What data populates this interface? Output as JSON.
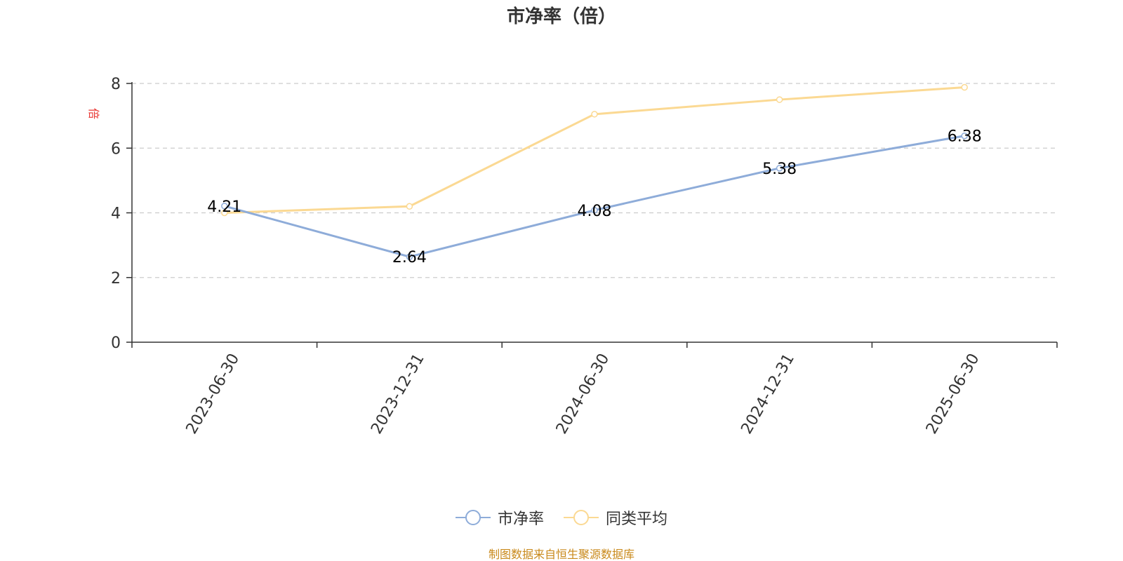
{
  "chart_data": {
    "type": "line",
    "title": "市净率（倍）",
    "ylabel": "倍",
    "categories": [
      "2023-06-30",
      "2023-12-31",
      "2024-06-30",
      "2024-12-31",
      "2025-06-30"
    ],
    "ylim": [
      0,
      8
    ],
    "yticks": [
      0,
      2,
      4,
      6,
      8
    ],
    "grid": true,
    "legend_position": "bottom",
    "series": [
      {
        "name": "市净率",
        "values": [
          4.21,
          2.64,
          4.08,
          5.38,
          6.38
        ],
        "color": "#8eacd9",
        "show_labels": true
      },
      {
        "name": "同类平均",
        "values": [
          4.0,
          4.2,
          7.05,
          7.5,
          7.88
        ],
        "color": "#fbd993",
        "show_labels": false
      }
    ]
  },
  "source": "制图数据来自恒生聚源数据库"
}
